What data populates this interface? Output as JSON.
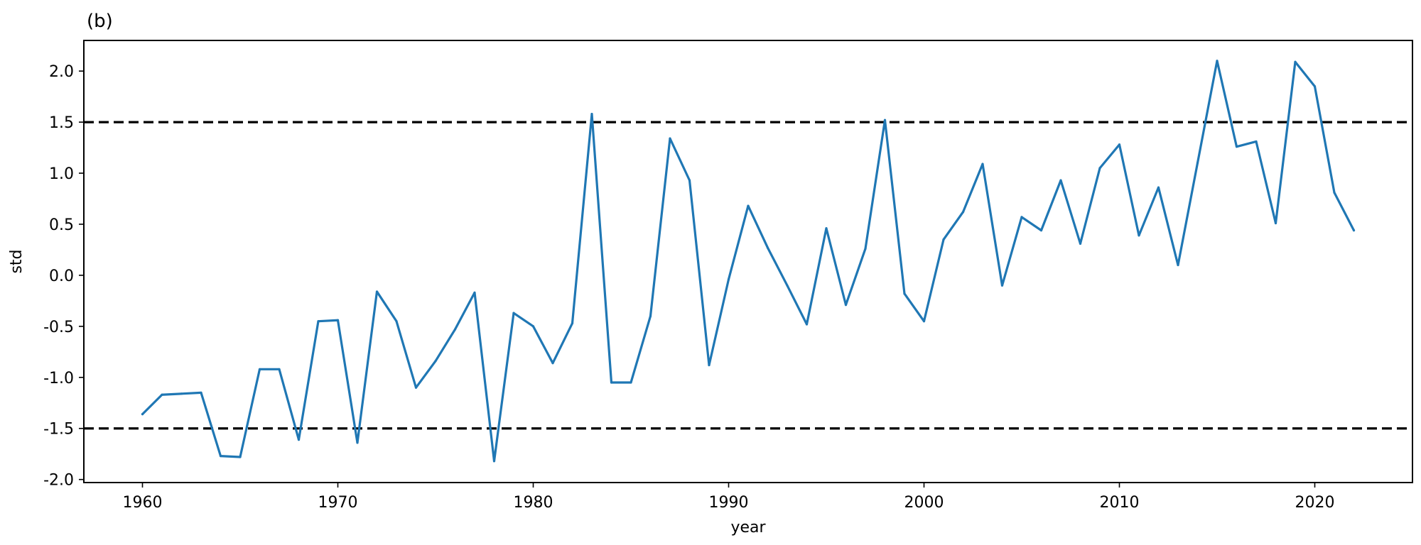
{
  "chart_data": {
    "type": "line",
    "panel_label": "(b)",
    "title": "",
    "xlabel": "year",
    "ylabel": "std",
    "xlim": [
      1957,
      2025
    ],
    "ylim": [
      -2.03,
      2.3
    ],
    "xticks": [
      1960,
      1970,
      1980,
      1990,
      2000,
      2010,
      2020
    ],
    "yticks": [
      -2.0,
      -1.5,
      -1.0,
      -0.5,
      0.0,
      0.5,
      1.0,
      1.5,
      2.0
    ],
    "ytick_labels": [
      "-2.0",
      "-1.5",
      "-1.0",
      "-0.5",
      "0.0",
      "0.5",
      "1.0",
      "1.5",
      "2.0"
    ],
    "grid": false,
    "series": [
      {
        "color": "#1f77b4",
        "x": [
          1960,
          1961,
          1962,
          1963,
          1964,
          1965,
          1966,
          1967,
          1968,
          1969,
          1970,
          1971,
          1972,
          1973,
          1974,
          1975,
          1976,
          1977,
          1978,
          1979,
          1980,
          1981,
          1982,
          1983,
          1984,
          1985,
          1986,
          1987,
          1988,
          1989,
          1990,
          1991,
          1992,
          1993,
          1994,
          1995,
          1996,
          1997,
          1998,
          1999,
          2000,
          2001,
          2002,
          2003,
          2004,
          2005,
          2006,
          2007,
          2008,
          2009,
          2010,
          2011,
          2012,
          2013,
          2014,
          2015,
          2016,
          2017,
          2018,
          2019,
          2020,
          2021,
          2022
        ],
        "y": [
          -1.36,
          -1.17,
          -1.16,
          -1.15,
          -1.77,
          -1.78,
          -0.92,
          -0.92,
          -1.61,
          -0.45,
          -0.44,
          -1.64,
          -0.16,
          -0.45,
          -1.1,
          -0.84,
          -0.53,
          -0.17,
          -1.82,
          -0.37,
          -0.5,
          -0.86,
          -0.47,
          1.58,
          -1.05,
          -1.05,
          -0.4,
          1.34,
          0.93,
          -0.88,
          -0.04,
          0.68,
          0.27,
          -0.1,
          -0.48,
          0.46,
          -0.29,
          0.26,
          1.52,
          -0.18,
          -0.45,
          0.35,
          0.62,
          1.09,
          -0.1,
          0.57,
          0.44,
          0.93,
          0.31,
          1.05,
          1.28,
          0.39,
          0.86,
          0.1,
          1.1,
          2.1,
          1.26,
          1.31,
          0.51,
          2.09,
          1.85,
          0.81,
          0.44
        ]
      }
    ],
    "reference_lines": [
      {
        "y": 1.5,
        "color": "#000000",
        "style": "dashed"
      },
      {
        "y": -1.5,
        "color": "#000000",
        "style": "dashed"
      }
    ]
  }
}
